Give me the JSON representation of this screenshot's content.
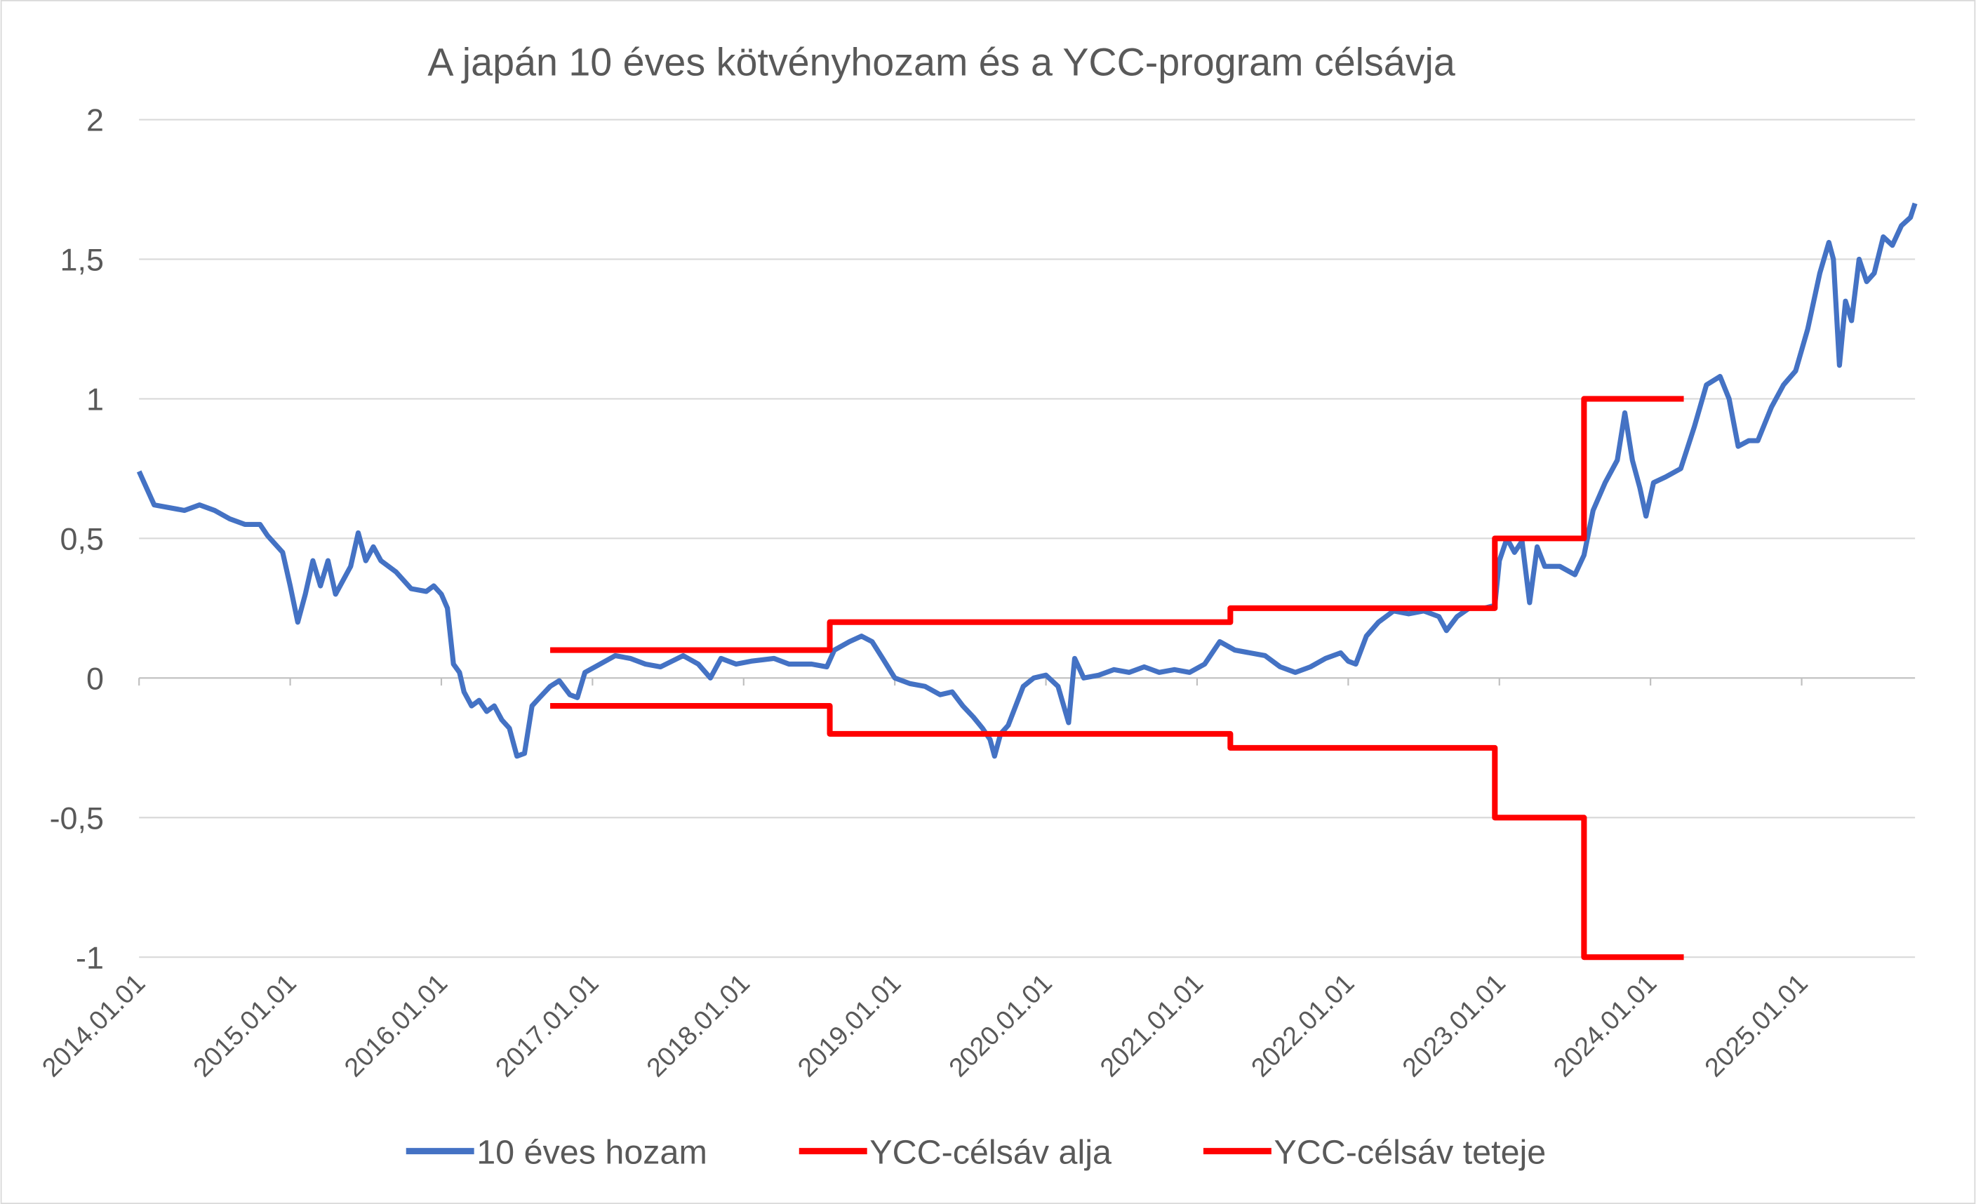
{
  "chart_data": {
    "type": "line",
    "title": "A japán 10 éves kötvényhozam és a YCC-program célsávja",
    "xlabel": "",
    "ylabel": "",
    "x_range": [
      2014.0,
      2025.75
    ],
    "ylim": [
      -1,
      2
    ],
    "grid": true,
    "legend_position": "bottom",
    "y_ticks": [
      {
        "value": 2,
        "label": "2"
      },
      {
        "value": 1.5,
        "label": "1,5"
      },
      {
        "value": 1,
        "label": "1"
      },
      {
        "value": 0.5,
        "label": "0,5"
      },
      {
        "value": 0,
        "label": "0"
      },
      {
        "value": -0.5,
        "label": "-0,5"
      },
      {
        "value": -1,
        "label": "-1"
      }
    ],
    "x_ticks": [
      {
        "value": 2014,
        "label": "2014.01.01"
      },
      {
        "value": 2015,
        "label": "2015.01.01"
      },
      {
        "value": 2016,
        "label": "2016.01.01"
      },
      {
        "value": 2017,
        "label": "2017.01.01"
      },
      {
        "value": 2018,
        "label": "2018.01.01"
      },
      {
        "value": 2019,
        "label": "2019.01.01"
      },
      {
        "value": 2020,
        "label": "2020.01.01"
      },
      {
        "value": 2021,
        "label": "2021.01.01"
      },
      {
        "value": 2022,
        "label": "2022.01.01"
      },
      {
        "value": 2023,
        "label": "2023.01.01"
      },
      {
        "value": 2024,
        "label": "2024.01.01"
      },
      {
        "value": 2025,
        "label": "2025.01.01"
      }
    ],
    "series": [
      {
        "name": "10 éves hozam",
        "color": "#4472C4",
        "step": false,
        "points": [
          [
            2014.0,
            0.74
          ],
          [
            2014.05,
            0.68
          ],
          [
            2014.1,
            0.62
          ],
          [
            2014.2,
            0.61
          ],
          [
            2014.3,
            0.6
          ],
          [
            2014.4,
            0.62
          ],
          [
            2014.5,
            0.6
          ],
          [
            2014.6,
            0.57
          ],
          [
            2014.7,
            0.55
          ],
          [
            2014.8,
            0.55
          ],
          [
            2014.85,
            0.51
          ],
          [
            2014.95,
            0.45
          ],
          [
            2015.0,
            0.33
          ],
          [
            2015.05,
            0.2
          ],
          [
            2015.1,
            0.3
          ],
          [
            2015.15,
            0.42
          ],
          [
            2015.2,
            0.33
          ],
          [
            2015.25,
            0.42
          ],
          [
            2015.3,
            0.3
          ],
          [
            2015.4,
            0.4
          ],
          [
            2015.45,
            0.52
          ],
          [
            2015.5,
            0.42
          ],
          [
            2015.55,
            0.47
          ],
          [
            2015.6,
            0.42
          ],
          [
            2015.7,
            0.38
          ],
          [
            2015.8,
            0.32
          ],
          [
            2015.9,
            0.31
          ],
          [
            2015.95,
            0.33
          ],
          [
            2016.0,
            0.3
          ],
          [
            2016.04,
            0.25
          ],
          [
            2016.08,
            0.05
          ],
          [
            2016.12,
            0.02
          ],
          [
            2016.15,
            -0.05
          ],
          [
            2016.2,
            -0.1
          ],
          [
            2016.25,
            -0.08
          ],
          [
            2016.3,
            -0.12
          ],
          [
            2016.35,
            -0.1
          ],
          [
            2016.4,
            -0.15
          ],
          [
            2016.45,
            -0.18
          ],
          [
            2016.5,
            -0.28
          ],
          [
            2016.55,
            -0.27
          ],
          [
            2016.6,
            -0.1
          ],
          [
            2016.65,
            -0.07
          ],
          [
            2016.72,
            -0.03
          ],
          [
            2016.78,
            -0.01
          ],
          [
            2016.85,
            -0.06
          ],
          [
            2016.9,
            -0.07
          ],
          [
            2016.95,
            0.02
          ],
          [
            2017.05,
            0.05
          ],
          [
            2017.15,
            0.08
          ],
          [
            2017.25,
            0.07
          ],
          [
            2017.35,
            0.05
          ],
          [
            2017.45,
            0.04
          ],
          [
            2017.6,
            0.08
          ],
          [
            2017.7,
            0.05
          ],
          [
            2017.78,
            0.0
          ],
          [
            2017.85,
            0.07
          ],
          [
            2017.95,
            0.05
          ],
          [
            2018.05,
            0.06
          ],
          [
            2018.2,
            0.07
          ],
          [
            2018.3,
            0.05
          ],
          [
            2018.45,
            0.05
          ],
          [
            2018.55,
            0.04
          ],
          [
            2018.6,
            0.1
          ],
          [
            2018.7,
            0.13
          ],
          [
            2018.78,
            0.15
          ],
          [
            2018.85,
            0.13
          ],
          [
            2018.92,
            0.07
          ],
          [
            2019.0,
            0.0
          ],
          [
            2019.1,
            -0.02
          ],
          [
            2019.2,
            -0.03
          ],
          [
            2019.3,
            -0.06
          ],
          [
            2019.38,
            -0.05
          ],
          [
            2019.45,
            -0.1
          ],
          [
            2019.52,
            -0.14
          ],
          [
            2019.58,
            -0.18
          ],
          [
            2019.63,
            -0.22
          ],
          [
            2019.66,
            -0.28
          ],
          [
            2019.7,
            -0.2
          ],
          [
            2019.75,
            -0.17
          ],
          [
            2019.8,
            -0.1
          ],
          [
            2019.85,
            -0.03
          ],
          [
            2019.92,
            0.0
          ],
          [
            2020.0,
            0.01
          ],
          [
            2020.08,
            -0.03
          ],
          [
            2020.15,
            -0.16
          ],
          [
            2020.19,
            0.07
          ],
          [
            2020.25,
            0.0
          ],
          [
            2020.35,
            0.01
          ],
          [
            2020.45,
            0.03
          ],
          [
            2020.55,
            0.02
          ],
          [
            2020.65,
            0.04
          ],
          [
            2020.75,
            0.02
          ],
          [
            2020.85,
            0.03
          ],
          [
            2020.95,
            0.02
          ],
          [
            2021.05,
            0.05
          ],
          [
            2021.15,
            0.13
          ],
          [
            2021.25,
            0.1
          ],
          [
            2021.35,
            0.09
          ],
          [
            2021.45,
            0.08
          ],
          [
            2021.55,
            0.04
          ],
          [
            2021.65,
            0.02
          ],
          [
            2021.75,
            0.04
          ],
          [
            2021.85,
            0.07
          ],
          [
            2021.95,
            0.09
          ],
          [
            2022.0,
            0.06
          ],
          [
            2022.05,
            0.05
          ],
          [
            2022.12,
            0.15
          ],
          [
            2022.2,
            0.2
          ],
          [
            2022.3,
            0.24
          ],
          [
            2022.4,
            0.23
          ],
          [
            2022.5,
            0.24
          ],
          [
            2022.6,
            0.22
          ],
          [
            2022.65,
            0.17
          ],
          [
            2022.72,
            0.22
          ],
          [
            2022.8,
            0.25
          ],
          [
            2022.9,
            0.25
          ],
          [
            2022.97,
            0.26
          ],
          [
            2023.0,
            0.42
          ],
          [
            2023.05,
            0.5
          ],
          [
            2023.1,
            0.45
          ],
          [
            2023.15,
            0.49
          ],
          [
            2023.2,
            0.27
          ],
          [
            2023.25,
            0.47
          ],
          [
            2023.3,
            0.4
          ],
          [
            2023.4,
            0.4
          ],
          [
            2023.5,
            0.37
          ],
          [
            2023.56,
            0.44
          ],
          [
            2023.62,
            0.6
          ],
          [
            2023.7,
            0.7
          ],
          [
            2023.78,
            0.78
          ],
          [
            2023.83,
            0.95
          ],
          [
            2023.88,
            0.78
          ],
          [
            2023.93,
            0.68
          ],
          [
            2023.97,
            0.58
          ],
          [
            2024.02,
            0.7
          ],
          [
            2024.1,
            0.72
          ],
          [
            2024.2,
            0.75
          ],
          [
            2024.29,
            0.9
          ],
          [
            2024.37,
            1.05
          ],
          [
            2024.46,
            1.08
          ],
          [
            2024.52,
            1.0
          ],
          [
            2024.58,
            0.83
          ],
          [
            2024.65,
            0.85
          ],
          [
            2024.71,
            0.85
          ],
          [
            2024.8,
            0.97
          ],
          [
            2024.88,
            1.05
          ],
          [
            2024.96,
            1.1
          ],
          [
            2025.04,
            1.25
          ],
          [
            2025.12,
            1.45
          ],
          [
            2025.18,
            1.56
          ],
          [
            2025.21,
            1.5
          ],
          [
            2025.25,
            1.12
          ],
          [
            2025.29,
            1.35
          ],
          [
            2025.33,
            1.28
          ],
          [
            2025.38,
            1.5
          ],
          [
            2025.43,
            1.42
          ],
          [
            2025.48,
            1.45
          ],
          [
            2025.54,
            1.58
          ],
          [
            2025.6,
            1.55
          ],
          [
            2025.66,
            1.62
          ],
          [
            2025.72,
            1.65
          ],
          [
            2025.75,
            1.7
          ]
        ]
      },
      {
        "name": "YCC-célsáv alja",
        "color": "#FF0000",
        "step": true,
        "points": [
          [
            2016.72,
            -0.1
          ],
          [
            2018.57,
            -0.2
          ],
          [
            2021.22,
            -0.25
          ],
          [
            2022.97,
            -0.5
          ],
          [
            2023.56,
            -1.0
          ],
          [
            2024.22,
            -1.0
          ]
        ]
      },
      {
        "name": "YCC-célsáv teteje",
        "color": "#FF0000",
        "step": true,
        "points": [
          [
            2016.72,
            0.1
          ],
          [
            2018.57,
            0.2
          ],
          [
            2021.22,
            0.25
          ],
          [
            2022.97,
            0.5
          ],
          [
            2023.56,
            1.0
          ],
          [
            2024.22,
            1.0
          ]
        ]
      }
    ]
  }
}
